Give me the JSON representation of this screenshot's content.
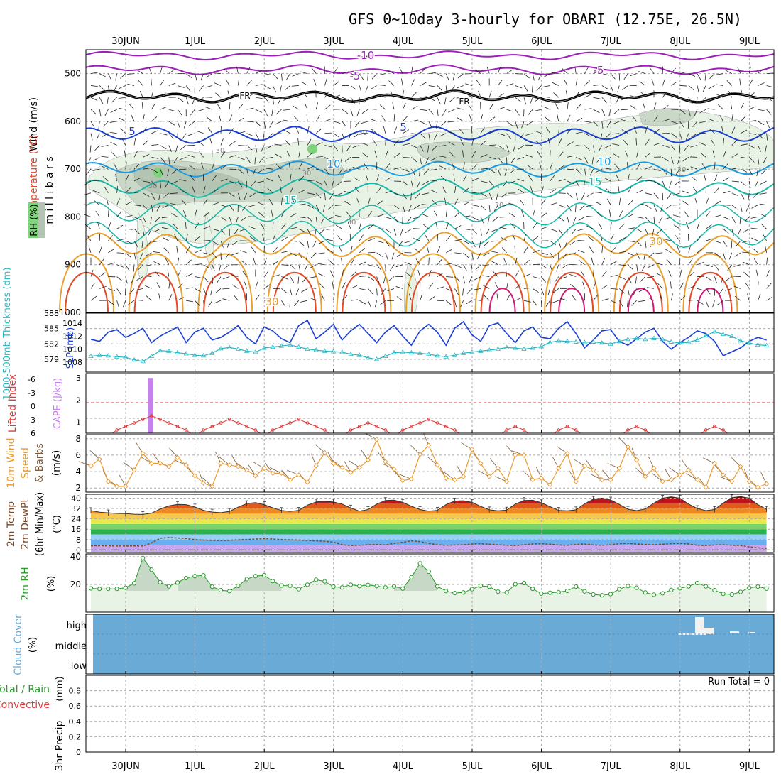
{
  "title": "GFS 0~10day 3-hourly for OBARI (12.75E, 26.5N)",
  "dates": [
    "30JUN",
    "1JUL",
    "2JUL",
    "3JUL",
    "4JUL",
    "5JUL",
    "6JUL",
    "7JUL",
    "8JUL",
    "9JUL"
  ],
  "run_total": "Run Total = 0",
  "colors": {
    "slp": "#1a3fd6",
    "thick": "#2ab7c4",
    "cape": "#c880f0",
    "li": "#e03a3a",
    "wind": "#e89a30",
    "rh": "#2a9a2a",
    "cloud": "#6aaad6"
  },
  "chart_data": [
    {
      "type": "heatmap",
      "name": "cross-section",
      "ylabel_parts": [
        "Wind (m/s)",
        "Temperature (°C)",
        "m i l l i b a r s",
        "RH (%)"
      ],
      "y_ticks": [
        "500",
        "600",
        "700",
        "800",
        "900",
        "1000"
      ],
      "ylim": [
        450,
        1000
      ],
      "contour_labels": {
        "purple": [
          "-10",
          "-5",
          "-5"
        ],
        "black": [
          "FR",
          "FR"
        ],
        "blue": [
          "5",
          "5",
          "10",
          "10",
          "15",
          "15"
        ],
        "orange": [
          "30",
          "30"
        ],
        "rh": [
          "30",
          "30",
          "30",
          "30",
          "30",
          "30",
          "30"
        ]
      }
    },
    {
      "type": "line",
      "name": "slp-thickness",
      "ylabel_left": "1000-500mb Thickness (dm)",
      "ylabel_right": "SLP (mb)",
      "left_ticks": [
        "588",
        "585",
        "582",
        "579"
      ],
      "right_ticks": [
        "1014",
        "1012",
        "1010",
        "1008"
      ],
      "slp": [
        1011.5,
        1011.2,
        1012.6,
        1013.0,
        1011.8,
        1012.4,
        1013.2,
        1011.0,
        1012.0,
        1012.7,
        1013.4,
        1011.0,
        1012.6,
        1013.2,
        1011.4,
        1011.8,
        1012.6,
        1013.6,
        1011.8,
        1010.8,
        1013.4,
        1012.8,
        1011.6,
        1011.0,
        1013.6,
        1014.4,
        1011.6,
        1012.6,
        1013.8,
        1011.4,
        1012.8,
        1013.8,
        1012.4,
        1011.0,
        1012.6,
        1013.6,
        1012.0,
        1010.6,
        1012.8,
        1013.8,
        1012.6,
        1010.6,
        1013.2,
        1014.2,
        1012.2,
        1011.2,
        1013.6,
        1014.0,
        1012.4,
        1011.0,
        1012.8,
        1013.4,
        1011.8,
        1011.6,
        1013.2,
        1014.2,
        1012.4,
        1010.2,
        1011.4,
        1012.8,
        1013.0,
        1011.2,
        1010.6,
        1011.6,
        1012.6,
        1013.2,
        1011.2,
        1010.0,
        1011.0,
        1011.8,
        1012.8,
        1012.4,
        1011.2,
        1009.0,
        1009.6,
        1010.2,
        1011.2,
        1011.8,
        1011.4
      ],
      "thick": [
        579.6,
        579.8,
        579.7,
        579.5,
        579.4,
        578.9,
        578.6,
        579.6,
        580.7,
        580.6,
        580.3,
        580.1,
        579.8,
        579.7,
        580.2,
        581.1,
        581.3,
        581.0,
        580.6,
        580.4,
        581.2,
        581.4,
        581.6,
        581.8,
        581.4,
        581.0,
        580.8,
        580.6,
        580.5,
        580.4,
        580.0,
        579.8,
        579.3,
        579.0,
        579.6,
        580.3,
        580.4,
        580.3,
        580.2,
        580.0,
        579.7,
        579.5,
        579.8,
        580.2,
        580.4,
        580.6,
        580.8,
        581.0,
        581.3,
        581.2,
        581.0,
        581.2,
        581.5,
        582.3,
        582.6,
        582.5,
        582.4,
        582.3,
        582.4,
        582.2,
        582.0,
        582.5,
        582.9,
        583.1,
        582.9,
        583.1,
        582.9,
        582.4,
        582.2,
        582.3,
        582.8,
        583.6,
        584.4,
        583.9,
        583.5,
        582.6,
        582.2,
        581.8,
        581.7
      ]
    },
    {
      "type": "bar",
      "name": "cape-li",
      "ylabel_left": "Lifted Index",
      "ylabel_right": "CAPE (J/kg)",
      "li_ticks": [
        "-6",
        "-3",
        "0",
        "3",
        "6"
      ],
      "cape_ticks": [
        "3",
        "2",
        "1"
      ],
      "cape": [
        0,
        0,
        0,
        0,
        0,
        0,
        0,
        3.0,
        0,
        0,
        0,
        0,
        0,
        0,
        0,
        0,
        0,
        0,
        0,
        0,
        0,
        0,
        0,
        0,
        0,
        0,
        0,
        0,
        0,
        0,
        0,
        0,
        0,
        0,
        0,
        0,
        0,
        0,
        0,
        0,
        0,
        0,
        0,
        0,
        0,
        0,
        0,
        0,
        0,
        0,
        0,
        0,
        0,
        0,
        0,
        0,
        0,
        0,
        0,
        0,
        0,
        0,
        0,
        0,
        0,
        0,
        0,
        0,
        0,
        0,
        0,
        0,
        0,
        0,
        0,
        0,
        0,
        0,
        0
      ]
    },
    {
      "type": "line",
      "name": "wind10m",
      "ylabel_parts": [
        "10m Wind",
        "Speed",
        "& Barbs",
        "(m/s)"
      ],
      "y_ticks": [
        "8",
        "6",
        "4",
        "2"
      ],
      "ylim": [
        1.5,
        8.5
      ],
      "values": [
        4.7,
        5.5,
        2.8,
        2.2,
        2.2,
        4.2,
        6.2,
        5.0,
        5.0,
        4.6,
        5.7,
        4.8,
        3.5,
        2.6,
        2.2,
        5.0,
        4.8,
        4.6,
        4.2,
        3.5,
        4.4,
        3.8,
        3.8,
        3.0,
        3.6,
        2.7,
        4.7,
        6.3,
        5.0,
        4.5,
        3.9,
        4.5,
        5.4,
        7.9,
        5.2,
        4.3,
        2.9,
        3.1,
        6.1,
        7.2,
        4.8,
        3.2,
        3.0,
        3.4,
        6.7,
        5.0,
        3.4,
        4.4,
        2.8,
        6.0,
        6.0,
        3.0,
        3.2,
        2.4,
        4.4,
        6.2,
        2.8,
        4.7,
        4.2,
        3.0,
        3.0,
        4.4,
        7.0,
        5.4,
        3.4,
        4.4,
        2.8,
        3.0,
        3.6,
        4.2,
        3.0,
        2.1,
        5.0,
        3.6,
        2.8,
        4.6,
        2.8,
        2.1,
        2.5
      ]
    },
    {
      "type": "area",
      "name": "temp2m",
      "ylabel_parts": [
        "2m Temp",
        "2m DewPt",
        "(6hr Min/Max)",
        "(°C)"
      ],
      "y_ticks": [
        "40",
        "32",
        "24",
        "16",
        "8",
        "0"
      ],
      "ylim": [
        -2,
        43
      ],
      "temp": [
        30.4,
        29.1,
        28.7,
        28.2,
        28.0,
        27.6,
        27.4,
        28.4,
        31.6,
        34.0,
        35.2,
        35.0,
        33.2,
        30.6,
        29.2,
        28.8,
        29.8,
        33.0,
        35.8,
        36.5,
        35.0,
        32.5,
        30.5,
        29.8,
        30.6,
        34.6,
        37.0,
        37.6,
        37.0,
        35.4,
        32.4,
        30.0,
        31.2,
        35.4,
        38.2,
        38.5,
        36.8,
        33.8,
        31.2,
        30.0,
        30.6,
        35.0,
        37.8,
        38.0,
        36.8,
        33.6,
        31.0,
        30.2,
        30.8,
        35.4,
        38.2,
        38.4,
        36.5,
        33.4,
        30.6,
        30.2,
        31.0,
        35.6,
        39.2,
        40.0,
        38.6,
        35.2,
        31.4,
        30.4,
        31.6,
        36.2,
        40.0,
        41.0,
        40.0,
        35.4,
        32.0,
        30.4,
        31.2,
        36.2,
        40.4,
        41.2,
        40.0,
        35.0,
        31.4
      ],
      "dew": [
        3.2,
        3.2,
        3.1,
        3.0,
        3.0,
        3.1,
        3.0,
        5.4,
        9.0,
        9.6,
        9.2,
        8.8,
        8.0,
        7.6,
        7.4,
        7.2,
        7.4,
        7.8,
        8.1,
        8.4,
        8.6,
        8.4,
        8.0,
        7.8,
        7.6,
        7.2,
        7.0,
        6.6,
        6.0,
        4.0,
        3.4,
        3.6,
        4.0,
        4.2,
        3.8,
        5.0,
        5.8,
        7.0,
        6.4,
        5.0,
        4.0,
        3.6,
        3.8,
        4.0,
        4.6,
        4.8,
        4.4,
        4.0,
        3.6,
        3.4,
        4.0,
        4.6,
        4.8,
        4.4,
        3.8,
        3.6,
        4.2,
        4.6,
        3.8,
        3.6,
        4.0,
        4.8,
        5.0,
        4.6,
        4.2,
        4.0,
        4.4,
        4.8,
        5.0,
        4.6,
        3.6,
        3.4,
        3.8,
        4.0,
        3.6,
        3.4,
        2.4,
        1.6,
        1.2
      ]
    },
    {
      "type": "area",
      "name": "rh2m",
      "ylabel": "2m RH",
      "yunit": "(%)",
      "y_ticks": [
        "40",
        "20"
      ],
      "ylim": [
        0,
        42
      ],
      "values": [
        17.2,
        16.8,
        16.8,
        16.8,
        17.6,
        20.8,
        39.0,
        30.6,
        21.6,
        18.6,
        21.4,
        24.6,
        26.0,
        26.6,
        18.4,
        15.8,
        15.2,
        19.0,
        23.8,
        26.0,
        26.6,
        22.4,
        19.2,
        19.0,
        16.6,
        19.8,
        23.4,
        22.2,
        18.4,
        17.8,
        19.8,
        18.8,
        19.6,
        18.8,
        17.8,
        18.6,
        17.0,
        25.2,
        35.2,
        29.2,
        18.6,
        15.2,
        13.8,
        14.2,
        16.6,
        19.0,
        18.4,
        14.8,
        14.2,
        20.2,
        21.0,
        16.8,
        13.4,
        14.0,
        14.4,
        15.4,
        18.4,
        15.0,
        12.8,
        12.2,
        13.0,
        16.6,
        18.8,
        17.6,
        14.2,
        12.6,
        13.6,
        16.0,
        17.2,
        18.6,
        21.0,
        18.6,
        15.8,
        13.2,
        12.8,
        14.6,
        17.6,
        18.4,
        17.0
      ]
    },
    {
      "type": "heatmap",
      "name": "cloud-cover",
      "ylabel": "Cloud Cover",
      "yunit": "(%)",
      "levels": [
        "high",
        "middle",
        "low"
      ]
    },
    {
      "type": "bar",
      "name": "precip",
      "ylabel_left_parts": [
        "Total / Rain",
        "Convective"
      ],
      "ylabel": "3hr Precip",
      "yunit": "(mm)",
      "y_ticks": [
        "0.8",
        "0.6",
        "0.4",
        "0.2",
        "0"
      ],
      "ylim": [
        0,
        1
      ],
      "values": [
        0,
        0,
        0,
        0,
        0,
        0,
        0,
        0,
        0,
        0,
        0,
        0,
        0,
        0,
        0,
        0,
        0,
        0,
        0,
        0,
        0,
        0,
        0,
        0,
        0,
        0,
        0,
        0,
        0,
        0,
        0,
        0,
        0,
        0,
        0,
        0,
        0,
        0,
        0,
        0,
        0,
        0,
        0,
        0,
        0,
        0,
        0,
        0,
        0,
        0,
        0,
        0,
        0,
        0,
        0,
        0,
        0,
        0,
        0,
        0,
        0,
        0,
        0,
        0,
        0,
        0,
        0,
        0,
        0,
        0,
        0,
        0,
        0,
        0,
        0,
        0,
        0,
        0,
        0
      ]
    }
  ]
}
